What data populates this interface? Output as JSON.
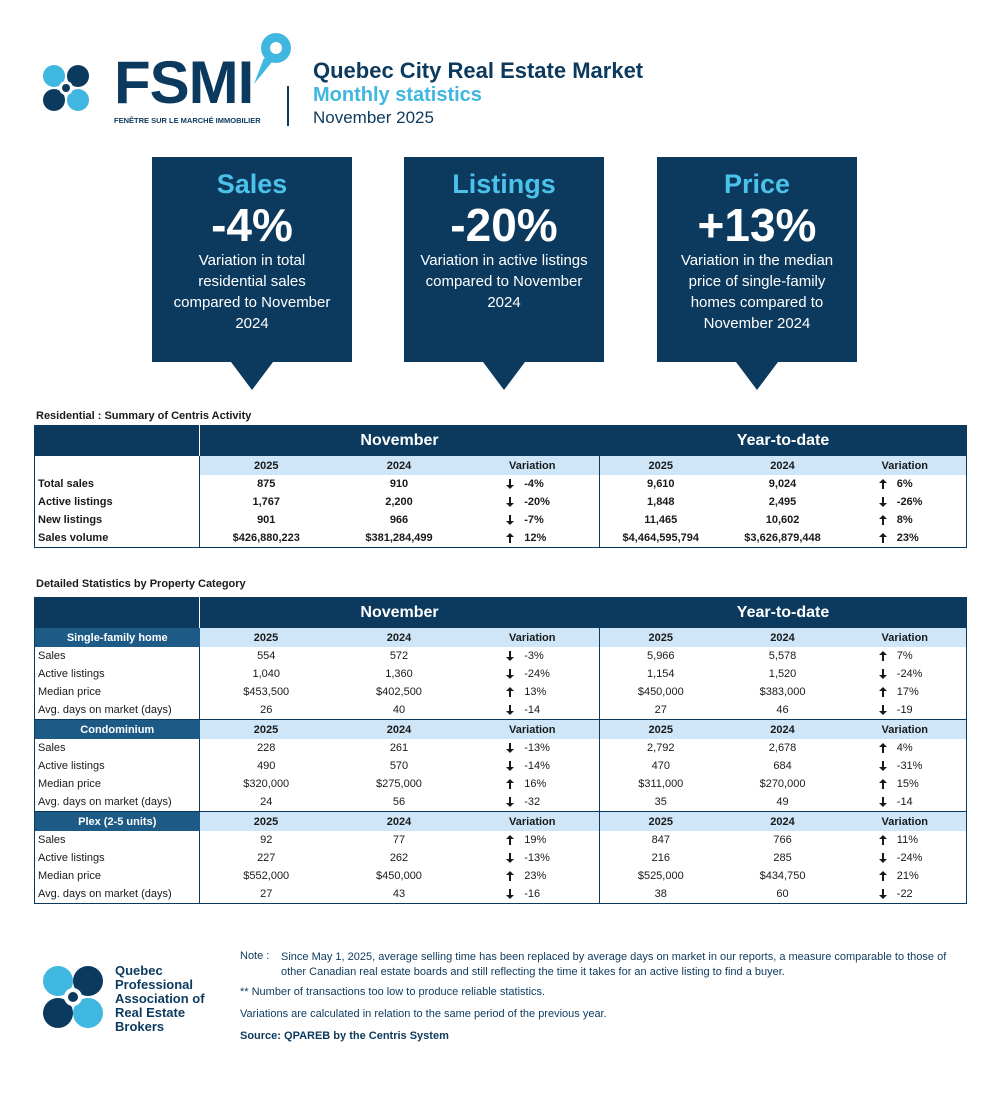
{
  "header": {
    "brand": "FSMI",
    "brand_tagline": "FENÊTRE SUR LE MARCHÉ IMMOBILIER",
    "title": "Quebec City Real Estate Market",
    "subtitle": "Monthly statistics",
    "period": "November 2025"
  },
  "callouts": [
    {
      "title": "Sales",
      "value": "-4%",
      "text": "Variation in total residential sales compared to November 2024"
    },
    {
      "title": "Listings",
      "value": "-20%",
      "text": "Variation in active listings compared to November 2024"
    },
    {
      "title": "Price",
      "value": "+13%",
      "text": "Variation in the median price of single-family homes compared to November 2024"
    }
  ],
  "summary": {
    "title": "Residential : Summary of Centris Activity",
    "groups": [
      "November",
      "Year-to-date"
    ],
    "columns": [
      "2025",
      "2024",
      "Variation",
      "2025",
      "2024",
      "Variation"
    ],
    "rows": [
      {
        "label": "Total sales",
        "cells": [
          "875",
          "910",
          "-4%",
          "9,610",
          "9,024",
          "6%"
        ]
      },
      {
        "label": "Active listings",
        "cells": [
          "1,767",
          "2,200",
          "-20%",
          "1,848",
          "2,495",
          "-26%"
        ]
      },
      {
        "label": "New listings",
        "cells": [
          "901",
          "966",
          "-7%",
          "11,465",
          "10,602",
          "8%"
        ]
      },
      {
        "label": "Sales volume",
        "cells": [
          "$426,880,223",
          "$381,284,499",
          "12%",
          "$4,464,595,794",
          "$3,626,879,448",
          "23%"
        ]
      }
    ]
  },
  "detailed": {
    "title": "Detailed Statistics by Property Category",
    "groups": [
      "November",
      "Year-to-date"
    ],
    "columns": [
      "2025",
      "2024",
      "Variation",
      "2025",
      "2024",
      "Variation"
    ],
    "sections": [
      {
        "name": "Single-family home",
        "rows": [
          {
            "label": "Sales",
            "cells": [
              "554",
              "572",
              "-3%",
              "5,966",
              "5,578",
              "7%"
            ]
          },
          {
            "label": "Active listings",
            "cells": [
              "1,040",
              "1,360",
              "-24%",
              "1,154",
              "1,520",
              "-24%"
            ]
          },
          {
            "label": "Median price",
            "cells": [
              "$453,500",
              "$402,500",
              "13%",
              "$450,000",
              "$383,000",
              "17%"
            ]
          },
          {
            "label": "Avg. days on market (days)",
            "cells": [
              "26",
              "40",
              "-14",
              "27",
              "46",
              "-19"
            ]
          }
        ]
      },
      {
        "name": "Condominium",
        "rows": [
          {
            "label": "Sales",
            "cells": [
              "228",
              "261",
              "-13%",
              "2,792",
              "2,678",
              "4%"
            ]
          },
          {
            "label": "Active listings",
            "cells": [
              "490",
              "570",
              "-14%",
              "470",
              "684",
              "-31%"
            ]
          },
          {
            "label": "Median price",
            "cells": [
              "$320,000",
              "$275,000",
              "16%",
              "$311,000",
              "$270,000",
              "15%"
            ]
          },
          {
            "label": "Avg. days on market (days)",
            "cells": [
              "24",
              "56",
              "-32",
              "35",
              "49",
              "-14"
            ]
          }
        ]
      },
      {
        "name": "Plex (2-5 units)",
        "rows": [
          {
            "label": "Sales",
            "cells": [
              "92",
              "77",
              "19%",
              "847",
              "766",
              "11%"
            ]
          },
          {
            "label": "Active listings",
            "cells": [
              "227",
              "262",
              "-13%",
              "216",
              "285",
              "-24%"
            ]
          },
          {
            "label": "Median price",
            "cells": [
              "$552,000",
              "$450,000",
              "23%",
              "$525,000",
              "$434,750",
              "21%"
            ]
          },
          {
            "label": "Avg. days on market (days)",
            "cells": [
              "27",
              "43",
              "-16",
              "38",
              "60",
              "-22"
            ]
          }
        ]
      }
    ]
  },
  "notes": {
    "note_label": "Note :",
    "note_text": "Since May 1, 2025, average selling time has been replaced by average days on market in our reports, a measure comparable to those of other Canadian real estate boards and still reflecting the time it takes for an active listing to find a buyer.",
    "footnote": "**  Number of transactions too low to produce reliable statistics.",
    "variation_note": "Variations are calculated in relation to the same period of the previous year.",
    "source": "Source: QPAREB by the Centris System"
  },
  "footer": {
    "organization": "Quebec Professional Association of Real Estate Brokers"
  }
}
